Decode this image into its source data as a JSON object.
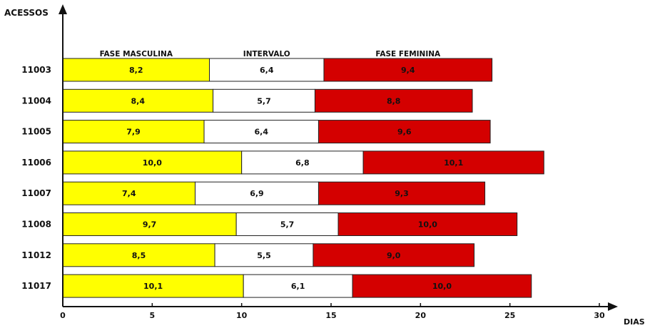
{
  "chart_data": {
    "type": "bar",
    "stacked": true,
    "orientation": "horizontal",
    "ylabel": "ACESSOS",
    "xlabel": "DIAS",
    "xlim": [
      0,
      30
    ],
    "xticks": [
      0,
      5,
      10,
      15,
      20,
      25,
      30
    ],
    "grid": false,
    "categories": [
      "11003",
      "11004",
      "11005",
      "11006",
      "11007",
      "11008",
      "11012",
      "11017"
    ],
    "series": [
      {
        "name": "FASE MASCULINA",
        "color": "#ffff00",
        "values": [
          8.2,
          8.4,
          7.9,
          10.0,
          7.4,
          9.7,
          8.5,
          10.1
        ],
        "labels": [
          "8,2",
          "8,4",
          "7,9",
          "10,0",
          "7,4",
          "9,7",
          "8,5",
          "10,1"
        ]
      },
      {
        "name": "INTERVALO",
        "color": "#ffffff",
        "values": [
          6.4,
          5.7,
          6.4,
          6.8,
          6.9,
          5.7,
          5.5,
          6.1
        ],
        "labels": [
          "6,4",
          "5,7",
          "6,4",
          "6,8",
          "6,9",
          "5,7",
          "5,5",
          "6,1"
        ]
      },
      {
        "name": "FASE FEMININA",
        "color": "#d40000",
        "values": [
          9.4,
          8.8,
          9.6,
          10.1,
          9.3,
          10.0,
          9.0,
          10.0
        ],
        "labels": [
          "9,4",
          "8,8",
          "9,6",
          "10,1",
          "9,3",
          "10,0",
          "9,0",
          "10,0"
        ]
      }
    ]
  }
}
